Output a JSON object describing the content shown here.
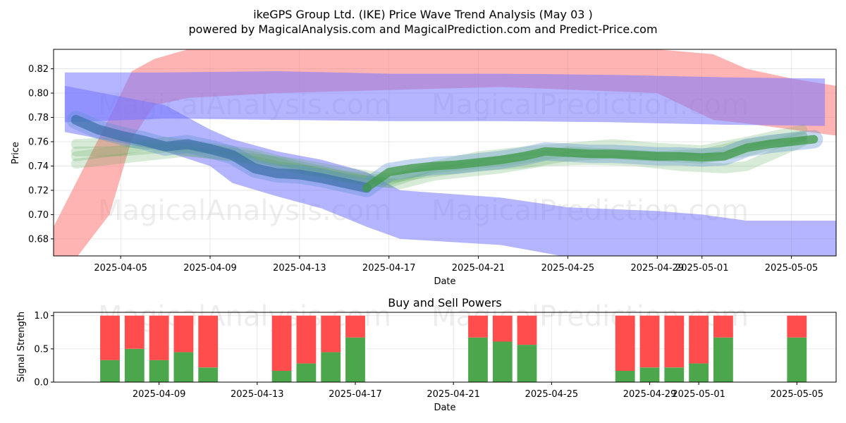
{
  "title_line1": "ikeGPS Group Ltd. (IKE) Price Wave Trend Analysis (May 03 )",
  "title_line2": "powered by MagicalAnalysis.com and MagicalPrediction.com and Predict-Price.com",
  "watermarks": [
    "MagicalAnalysis.com",
    "MagicalPrediction.com"
  ],
  "chart_data": [
    {
      "type": "area",
      "title": "",
      "xlabel": "Date",
      "ylabel": "Price",
      "ylim": [
        0.666,
        0.836
      ],
      "xlim": [
        "2025-04-02",
        "2025-05-07"
      ],
      "y_ticks": [
        "0.68",
        "0.70",
        "0.72",
        "0.74",
        "0.76",
        "0.78",
        "0.80",
        "0.82"
      ],
      "x_ticks": [
        "2025-04-05",
        "2025-04-09",
        "2025-04-13",
        "2025-04-17",
        "2025-04-21",
        "2025-04-25",
        "2025-04-29",
        "2025-05-01",
        "2025-05-05"
      ],
      "colors": {
        "red": "#ff6666",
        "blue": "#6666ff",
        "purple": "#a0409a",
        "green": "#4ca64c",
        "dark_blue": "#3333aa"
      },
      "bands": [
        {
          "name": "red-wave-band",
          "color": "#ff7777",
          "opacity": 0.55,
          "days": [
            0,
            2.5,
            3.5,
            4.5,
            6,
            10,
            20,
            27,
            29.5,
            31,
            33,
            35
          ],
          "upper": [
            0.69,
            0.78,
            0.818,
            0.828,
            0.836,
            0.836,
            0.836,
            0.836,
            0.832,
            0.82,
            0.812,
            0.806
          ],
          "lower": [
            0.64,
            0.7,
            0.762,
            0.79,
            0.796,
            0.8,
            0.805,
            0.8,
            0.778,
            0.775,
            0.77,
            0.765
          ]
        },
        {
          "name": "blue-upper-band",
          "color": "#7777ff",
          "opacity": 0.55,
          "days": [
            0.5,
            5,
            10,
            15,
            20,
            25,
            30,
            34.5
          ],
          "upper": [
            0.817,
            0.817,
            0.818,
            0.816,
            0.816,
            0.815,
            0.813,
            0.812
          ],
          "lower": [
            0.776,
            0.779,
            0.778,
            0.777,
            0.777,
            0.776,
            0.774,
            0.773
          ]
        },
        {
          "name": "blue-lower-band",
          "color": "#7777ff",
          "opacity": 0.55,
          "days": [
            0.5,
            5,
            7,
            8,
            10,
            12,
            14,
            15.5,
            20,
            23,
            27,
            29,
            31,
            35
          ],
          "upper": [
            0.806,
            0.79,
            0.77,
            0.762,
            0.752,
            0.745,
            0.735,
            0.72,
            0.714,
            0.706,
            0.703,
            0.7,
            0.695,
            0.695
          ],
          "lower": [
            0.768,
            0.752,
            0.74,
            0.726,
            0.715,
            0.705,
            0.69,
            0.68,
            0.675,
            0.665,
            0.655,
            0.65,
            0.65,
            0.65
          ]
        }
      ],
      "green_waves": [
        {
          "days": [
            1,
            3,
            5,
            6,
            8,
            11,
            13,
            15,
            17,
            19,
            21,
            23,
            25,
            27,
            29,
            31,
            33.5
          ],
          "values": [
            0.752,
            0.752,
            0.755,
            0.752,
            0.748,
            0.742,
            0.735,
            0.73,
            0.735,
            0.74,
            0.742,
            0.748,
            0.75,
            0.748,
            0.75,
            0.758,
            0.765
          ]
        },
        {
          "days": [
            1,
            3,
            5,
            7,
            9,
            11,
            13,
            15,
            17,
            19,
            21,
            23,
            25,
            27,
            29,
            31,
            33.5
          ],
          "values": [
            0.748,
            0.753,
            0.76,
            0.755,
            0.75,
            0.74,
            0.732,
            0.728,
            0.74,
            0.748,
            0.752,
            0.755,
            0.758,
            0.755,
            0.753,
            0.76,
            0.77
          ]
        },
        {
          "days": [
            1,
            4,
            6,
            8,
            10,
            12,
            14,
            15.5,
            17,
            20,
            22,
            24,
            26,
            28,
            30,
            31,
            33.5
          ],
          "values": [
            0.742,
            0.748,
            0.752,
            0.748,
            0.74,
            0.735,
            0.728,
            0.725,
            0.732,
            0.738,
            0.744,
            0.745,
            0.744,
            0.74,
            0.738,
            0.74,
            0.76
          ]
        },
        {
          "days": [
            1,
            3,
            5,
            7,
            9,
            11,
            13,
            15,
            17,
            19,
            21,
            23,
            25,
            27,
            29,
            31,
            33.5
          ],
          "values": [
            0.758,
            0.76,
            0.756,
            0.754,
            0.748,
            0.738,
            0.73,
            0.726,
            0.738,
            0.742,
            0.746,
            0.752,
            0.75,
            0.748,
            0.746,
            0.752,
            0.764
          ]
        }
      ],
      "main_wave": {
        "days": [
          1,
          2,
          3,
          4,
          5,
          6,
          7,
          8,
          9,
          10,
          11,
          12,
          13,
          14,
          15,
          16,
          17,
          18,
          19,
          20,
          21,
          22,
          23,
          24,
          25,
          26,
          27,
          28,
          29,
          30,
          31,
          32,
          33,
          34
        ],
        "values": [
          0.778,
          0.77,
          0.765,
          0.761,
          0.756,
          0.758,
          0.754,
          0.749,
          0.738,
          0.734,
          0.733,
          0.73,
          0.726,
          0.722,
          0.735,
          0.738,
          0.74,
          0.741,
          0.743,
          0.745,
          0.748,
          0.752,
          0.751,
          0.75,
          0.75,
          0.749,
          0.748,
          0.748,
          0.747,
          0.748,
          0.755,
          0.758,
          0.76,
          0.762
        ]
      }
    },
    {
      "type": "bar",
      "title": "Buy and Sell Powers",
      "xlabel": "Date",
      "ylabel": "Signal Strength",
      "ylim": [
        0,
        1.05
      ],
      "y_ticks": [
        "0.0",
        "0.5",
        "1.0"
      ],
      "x_ticks": [
        "2025-04-09",
        "2025-04-13",
        "2025-04-17",
        "2025-04-21",
        "2025-04-25",
        "2025-04-29",
        "2025-05-01",
        "2025-05-05"
      ],
      "series": [
        {
          "name": "Buy",
          "color": "#4ca64c"
        },
        {
          "name": "Sell",
          "color": "#ff4d4d"
        }
      ],
      "bars": [
        {
          "date": "2025-04-07",
          "buy": 0.33
        },
        {
          "date": "2025-04-08",
          "buy": 0.5
        },
        {
          "date": "2025-04-09",
          "buy": 0.33
        },
        {
          "date": "2025-04-10",
          "buy": 0.45
        },
        {
          "date": "2025-04-11",
          "buy": 0.22
        },
        {
          "date": "2025-04-14",
          "buy": 0.17
        },
        {
          "date": "2025-04-15",
          "buy": 0.28
        },
        {
          "date": "2025-04-16",
          "buy": 0.45
        },
        {
          "date": "2025-04-17",
          "buy": 0.67
        },
        {
          "date": "2025-04-22",
          "buy": 0.67
        },
        {
          "date": "2025-04-23",
          "buy": 0.61
        },
        {
          "date": "2025-04-24",
          "buy": 0.56
        },
        {
          "date": "2025-04-28",
          "buy": 0.17
        },
        {
          "date": "2025-04-29",
          "buy": 0.22
        },
        {
          "date": "2025-04-30",
          "buy": 0.22
        },
        {
          "date": "2025-05-01",
          "buy": 0.28
        },
        {
          "date": "2025-05-02",
          "buy": 0.67
        },
        {
          "date": "2025-05-05",
          "buy": 0.67
        }
      ]
    }
  ]
}
